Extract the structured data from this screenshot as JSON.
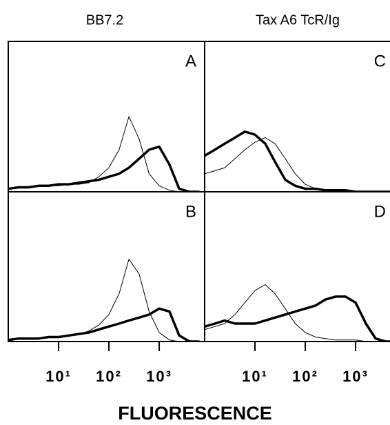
{
  "figure": {
    "column_titles": [
      "BB7.2",
      "Tax A6 TcR/Ig"
    ],
    "x_label": "FLUORESCENCE"
  },
  "chart_data": [
    {
      "type": "line",
      "title": "A",
      "log_x": true,
      "xlim": [
        1,
        8000
      ],
      "ylim": [
        0,
        100
      ],
      "x": [
        1,
        1.6,
        2.5,
        4,
        6.3,
        10,
        16,
        25,
        40,
        63,
        100,
        160,
        250,
        400,
        630,
        1000,
        1600,
        2500,
        4000,
        6300
      ],
      "series": [
        {
          "color": "#000000",
          "line_width": 1,
          "values": [
            2,
            3,
            3,
            4,
            4,
            4,
            5,
            5,
            6,
            10,
            16,
            28,
            50,
            35,
            12,
            4,
            1,
            0,
            0,
            0
          ]
        },
        {
          "color": "#000000",
          "line_width": 3.5,
          "values": [
            2,
            3,
            3,
            4,
            4,
            5,
            5,
            6,
            7,
            8,
            10,
            12,
            16,
            22,
            28,
            30,
            18,
            2,
            0,
            0
          ]
        }
      ]
    },
    {
      "type": "line",
      "title": "B",
      "log_x": true,
      "xlim": [
        1,
        8000
      ],
      "ylim": [
        0,
        100
      ],
      "xticks": [
        {
          "value": 10,
          "label": "10¹"
        },
        {
          "value": 100,
          "label": "10²"
        },
        {
          "value": 1000,
          "label": "10³"
        }
      ],
      "x": [
        1,
        1.6,
        2.5,
        4,
        6.3,
        10,
        16,
        25,
        40,
        63,
        100,
        160,
        250,
        400,
        630,
        1000,
        1600,
        2500,
        4000,
        6300
      ],
      "series": [
        {
          "color": "#000000",
          "line_width": 1,
          "values": [
            1,
            2,
            2,
            2,
            3,
            3,
            4,
            5,
            7,
            11,
            18,
            32,
            55,
            45,
            20,
            6,
            1,
            0,
            0,
            0
          ]
        },
        {
          "color": "#000000",
          "line_width": 3.5,
          "values": [
            1,
            2,
            2,
            2,
            3,
            3,
            4,
            5,
            6,
            8,
            10,
            12,
            14,
            16,
            18,
            22,
            20,
            4,
            0,
            0
          ]
        }
      ]
    },
    {
      "type": "line",
      "title": "C",
      "log_x": true,
      "xlim": [
        1,
        8000
      ],
      "ylim": [
        0,
        100
      ],
      "x": [
        1,
        1.6,
        2.5,
        4,
        6.3,
        10,
        16,
        25,
        40,
        63,
        100,
        160,
        250,
        400,
        630,
        1000,
        1600,
        2500,
        4000,
        6300
      ],
      "series": [
        {
          "color": "#000000",
          "line_width": 1,
          "values": [
            12,
            14,
            16,
            22,
            28,
            33,
            36,
            32,
            22,
            12,
            5,
            2,
            1,
            0,
            0,
            0,
            0,
            0,
            0,
            0
          ]
        },
        {
          "color": "#000000",
          "line_width": 3.5,
          "values": [
            24,
            28,
            32,
            36,
            40,
            38,
            32,
            20,
            8,
            4,
            2,
            2,
            1,
            1,
            1,
            0,
            0,
            0,
            0,
            0
          ]
        }
      ]
    },
    {
      "type": "line",
      "title": "D",
      "log_x": true,
      "xlim": [
        1,
        8000
      ],
      "ylim": [
        0,
        100
      ],
      "xticks": [
        {
          "value": 10,
          "label": "10¹"
        },
        {
          "value": 100,
          "label": "10²"
        },
        {
          "value": 1000,
          "label": "10³"
        }
      ],
      "x": [
        1,
        1.6,
        2.5,
        4,
        6.3,
        10,
        16,
        25,
        40,
        63,
        100,
        160,
        250,
        400,
        630,
        1000,
        1600,
        2500,
        4000,
        6300
      ],
      "series": [
        {
          "color": "#000000",
          "line_width": 1,
          "values": [
            8,
            10,
            12,
            18,
            26,
            34,
            38,
            32,
            22,
            12,
            6,
            3,
            2,
            1,
            1,
            1,
            0,
            0,
            0,
            0
          ]
        },
        {
          "color": "#000000",
          "line_width": 3.5,
          "values": [
            10,
            12,
            14,
            12,
            12,
            12,
            14,
            16,
            18,
            20,
            22,
            24,
            28,
            30,
            30,
            26,
            12,
            2,
            0,
            0
          ]
        }
      ]
    }
  ]
}
